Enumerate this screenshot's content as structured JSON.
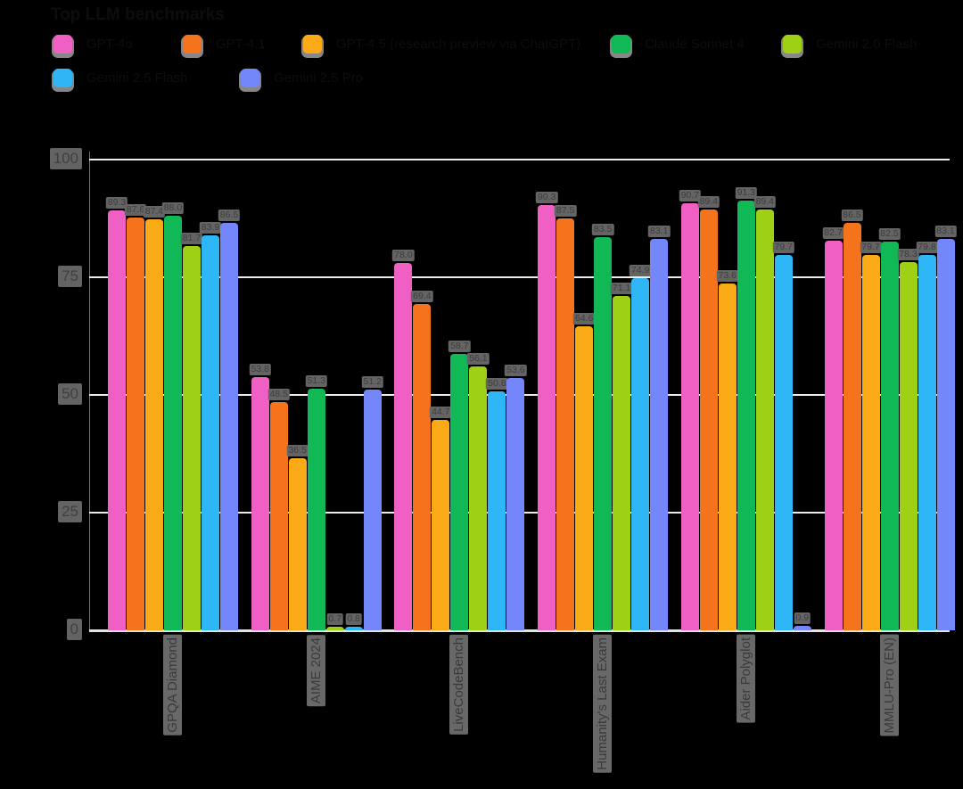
{
  "header": {
    "title": "Top LLM benchmarks"
  },
  "colors": {
    "background": "#000000",
    "gridline": "#ececec",
    "value_label_bg": "#646464",
    "axis_label_bg": "#686868",
    "dark_text": "#0d0d0d"
  },
  "legend": {
    "items": [
      {
        "label": "GPT-4o",
        "color": "#f05fc3"
      },
      {
        "label": "GPT-4.1",
        "color": "#f4731c"
      },
      {
        "label": "GPT-4.5 (research preview via ChatGPT)",
        "color": "#fbaa17"
      },
      {
        "label": "Claude Sonnet 4",
        "color": "#10b956"
      },
      {
        "label": "Gemini 2.0 Flash",
        "color": "#9ed015"
      },
      {
        "label": "Gemini 2.5 Flash",
        "color": "#2eb6f7"
      },
      {
        "label": "Gemini 2.5 Pro",
        "color": "#7387fa"
      }
    ]
  },
  "y_axis": {
    "ticks": [
      "100",
      "75",
      "50",
      "25",
      "0"
    ]
  },
  "chart_data": {
    "type": "bar",
    "title": "Top LLM benchmarks",
    "categories": [
      "GPQA Diamond",
      "AIME 2024",
      "LiveCodeBench",
      "Humanity's Last Exam",
      "Aider Polyglot",
      "MMLU-Pro (EN)"
    ],
    "series": [
      {
        "name": "GPT-4o",
        "color": "#f05fc3",
        "values": [
          89.3,
          53.8,
          78.0,
          90.3,
          90.7,
          82.7
        ]
      },
      {
        "name": "GPT-4.1",
        "color": "#f4731c",
        "values": [
          87.6,
          48.5,
          69.4,
          87.5,
          89.4,
          86.5
        ]
      },
      {
        "name": "GPT-4.5 (research preview via ChatGPT)",
        "color": "#fbaa17",
        "values": [
          87.4,
          36.5,
          44.7,
          64.6,
          73.6,
          79.7
        ]
      },
      {
        "name": "Claude Sonnet 4",
        "color": "#10b956",
        "values": [
          88.0,
          51.3,
          58.7,
          83.5,
          91.3,
          82.5
        ]
      },
      {
        "name": "Gemini 2.0 Flash",
        "color": "#9ed015",
        "values": [
          81.7,
          0.7,
          56.1,
          71.1,
          89.4,
          78.3
        ]
      },
      {
        "name": "Gemini 2.5 Flash",
        "color": "#2eb6f7",
        "values": [
          83.9,
          0.8,
          50.8,
          74.9,
          79.7,
          79.8
        ]
      },
      {
        "name": "Gemini 2.5 Pro",
        "color": "#7387fa",
        "values": [
          86.5,
          51.2,
          53.6,
          83.1,
          0.9,
          83.1
        ]
      }
    ],
    "ylim": [
      0,
      100
    ],
    "y_ticks": [
      100,
      75,
      50,
      25,
      0
    ],
    "grid": true,
    "legend_position": "top-left",
    "value_labels": "one decimal, gray, above each bar",
    "x_label_style": "rotated vertical, gray"
  }
}
